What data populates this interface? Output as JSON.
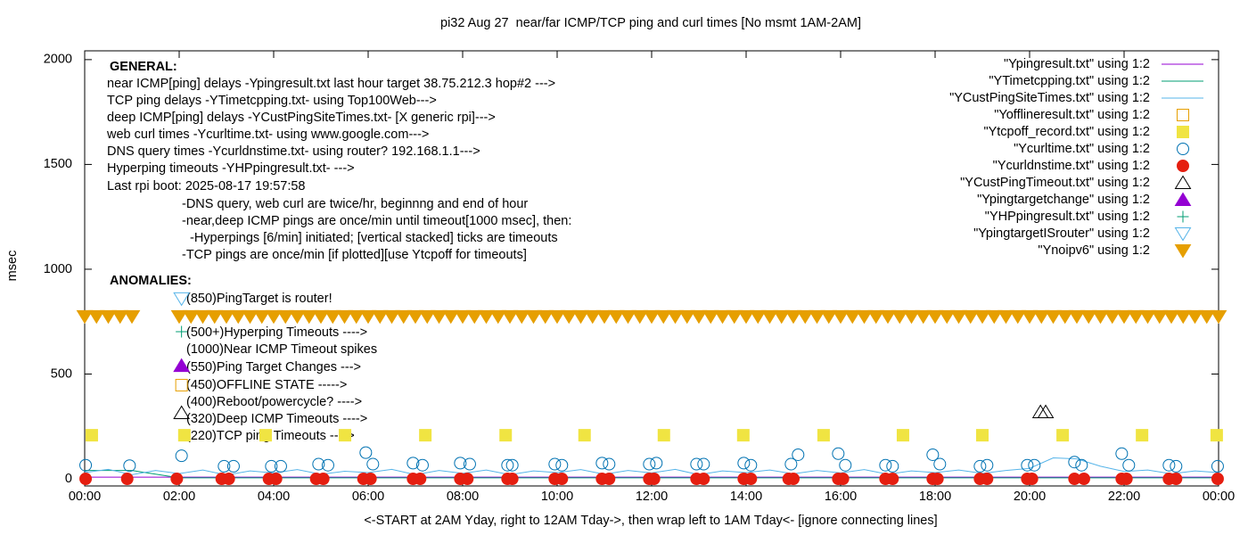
{
  "chart_data": {
    "type": "scatter",
    "title": "pi32 Aug 27  near/far ICMP/TCP ping and curl times [No msmt 1AM-2AM]",
    "xlabel": "<-START at 2AM Yday, right to 12AM Tday->, then wrap left to 1AM Tday<- [ignore connecting lines]",
    "ylabel": "msec",
    "xlim": [
      0,
      24
    ],
    "xticks": [
      {
        "value": 0,
        "label": "00:00"
      },
      {
        "value": 2,
        "label": "02:00"
      },
      {
        "value": 4,
        "label": "04:00"
      },
      {
        "value": 6,
        "label": "06:00"
      },
      {
        "value": 8,
        "label": "08:00"
      },
      {
        "value": 10,
        "label": "10:00"
      },
      {
        "value": 12,
        "label": "12:00"
      },
      {
        "value": 14,
        "label": "14:00"
      },
      {
        "value": 16,
        "label": "16:00"
      },
      {
        "value": 18,
        "label": "18:00"
      },
      {
        "value": 20,
        "label": "20:00"
      },
      {
        "value": 22,
        "label": "22:00"
      },
      {
        "value": 24,
        "label": "00:00"
      }
    ],
    "ylim": [
      -34,
      2042
    ],
    "yticks": [
      0,
      500,
      1000,
      1500,
      2000
    ],
    "general_notes": [
      "GENERAL:",
      "near ICMP[ping] delays -Ypingresult.txt last hour target 38.75.212.3 hop#2 --->",
      "TCP ping delays -YTimetcpping.txt- using Top100Web--->",
      "deep ICMP[ping] delays -YCustPingSiteTimes.txt- [X generic rpi]--->",
      "web curl times -Ycurltime.txt- using www.google.com--->",
      "DNS query times -Ycurldnstime.txt- using router? 192.168.1.1--->",
      "Hyperping timeouts -YHPpingresult.txt- --->",
      "Last rpi boot: 2025-08-17 19:57:58",
      "-DNS query, web curl are twice/hr, beginnng and end of hour",
      "-near,deep ICMP pings are once/min until timeout[1000 msec], then:",
      "-Hyperpings [6/min] initiated; [vertical stacked] ticks are timeouts",
      "-TCP pings are once/min [if plotted][use Ytcpoff for timeouts]"
    ],
    "anomaly_notes": [
      "ANOMALIES:",
      "(850)PingTarget is router!",
      "(500+)Hyperping Timeouts ---->",
      "(1000)Near ICMP Timeout spikes",
      "(550)Ping Target Changes --->",
      "(450)OFFLINE STATE ----->",
      "(400)Reboot/powercycle? ---->",
      "(320)Deep ICMP Timeouts ---->",
      "(220)TCP ping Timeouts ---->"
    ],
    "series": [
      {
        "name": "\"Ypingresult.txt\" using 1:2",
        "color": "#9400d3",
        "marker": "line",
        "x": [
          0,
          6,
          12,
          18,
          24
        ],
        "values": [
          8,
          8,
          8,
          8,
          8
        ]
      },
      {
        "name": "\"YTimetcpping.txt\" using 1:2",
        "color": "#009e73",
        "marker": "line",
        "x": [
          0,
          1,
          2,
          4,
          8,
          12,
          16,
          20,
          24
        ],
        "values": [
          40,
          40,
          5,
          5,
          5,
          5,
          5,
          5,
          5
        ]
      },
      {
        "name": "\"YCustPingSiteTimes.txt\" using 1:2",
        "color": "#56b4e9",
        "marker": "line",
        "x": [
          0,
          0.5,
          1,
          1.5,
          2,
          2.5,
          3,
          3.5,
          4,
          4.5,
          5,
          5.5,
          6,
          6.5,
          7,
          7.5,
          8,
          8.5,
          9,
          9.5,
          10,
          10.5,
          11,
          11.5,
          12,
          12.5,
          13,
          13.5,
          14,
          14.5,
          15,
          15.5,
          16,
          16.5,
          17,
          17.5,
          18,
          18.5,
          19,
          19.5,
          20,
          20.5,
          21,
          21.5,
          22,
          22.5,
          23,
          23.5,
          24
        ],
        "values": [
          30,
          45,
          20,
          40,
          25,
          42,
          18,
          38,
          28,
          44,
          22,
          36,
          30,
          45,
          20,
          40,
          26,
          42,
          20,
          38,
          30,
          44,
          22,
          40,
          28,
          45,
          20,
          38,
          30,
          42,
          24,
          40,
          28,
          44,
          22,
          38,
          30,
          42,
          26,
          40,
          50,
          100,
          95,
          60,
          35,
          42,
          24,
          38,
          30
        ]
      },
      {
        "name": "\"Yofflineresult.txt\" using 1:2",
        "color": "#e69f00",
        "marker": "square-open",
        "x": [
          2.05
        ],
        "values": [
          447
        ]
      },
      {
        "name": "\"Ytcpoff_record.txt\" using 1:2",
        "color": "#f0e442",
        "marker": "square-filled",
        "x": [
          0.15,
          2.11,
          3.83,
          5.51,
          7.21,
          8.91,
          10.58,
          12.26,
          13.94,
          15.64,
          17.32,
          19.0,
          20.7,
          22.38,
          23.96
        ],
        "values": [
          208,
          208,
          208,
          208,
          208,
          208,
          208,
          208,
          208,
          208,
          208,
          208,
          208,
          208,
          208
        ]
      },
      {
        "name": "\"Ycurltime.txt\" using 1:2",
        "color": "#0072b2",
        "marker": "circle-open",
        "x": [
          0.02,
          0.95,
          2.05,
          2.95,
          3.15,
          3.95,
          4.15,
          4.95,
          5.15,
          5.95,
          6.1,
          6.95,
          7.15,
          7.95,
          8.15,
          8.95,
          9.05,
          9.95,
          10.1,
          10.95,
          11.1,
          11.95,
          12.1,
          12.95,
          13.1,
          13.95,
          14.1,
          14.95,
          15.1,
          15.95,
          16.1,
          16.95,
          17.1,
          17.95,
          18.1,
          18.95,
          19.1,
          19.95,
          20.1,
          20.95,
          21.1,
          21.95,
          22.1,
          22.95,
          23.1,
          23.98
        ],
        "values": [
          65,
          63,
          110,
          60,
          60,
          60,
          60,
          70,
          65,
          125,
          70,
          75,
          65,
          75,
          70,
          65,
          65,
          70,
          65,
          75,
          70,
          70,
          75,
          70,
          70,
          75,
          65,
          70,
          115,
          120,
          65,
          65,
          60,
          115,
          70,
          60,
          65,
          65,
          65,
          80,
          65,
          120,
          65,
          65,
          60,
          60
        ]
      },
      {
        "name": "\"Ycurldnstime.txt\" using 1:2",
        "color": "#e51e10",
        "marker": "circle-filled",
        "x": [
          0.02,
          0.9,
          1.95,
          2.9,
          3.05,
          3.9,
          4.05,
          4.9,
          5.05,
          5.9,
          6.05,
          6.95,
          7.1,
          7.95,
          8.1,
          8.95,
          9.05,
          9.95,
          10.1,
          10.95,
          11.1,
          11.95,
          12.05,
          12.95,
          13.1,
          13.95,
          14.1,
          14.9,
          15.0,
          15.95,
          16.05,
          16.95,
          17.1,
          17.95,
          18.05,
          18.95,
          19.1,
          19.95,
          20.05,
          20.95,
          21.15,
          21.95,
          22.05,
          22.95,
          23.1,
          23.98
        ],
        "values": [
          0,
          0,
          0,
          0,
          0,
          0,
          0,
          0,
          0,
          0,
          0,
          0,
          0,
          0,
          0,
          0,
          0,
          0,
          0,
          0,
          0,
          0,
          0,
          0,
          0,
          0,
          0,
          0,
          0,
          0,
          0,
          0,
          0,
          0,
          0,
          0,
          0,
          0,
          0,
          0,
          0,
          0,
          0,
          0,
          0,
          0
        ]
      },
      {
        "name": "\"YCustPingTimeout.txt\" using 1:2",
        "color": "#000000",
        "marker": "triangle-open",
        "x": [
          2.05,
          20.23,
          20.34
        ],
        "values": [
          315,
          319,
          319
        ]
      },
      {
        "name": "\"Ypingtargetchange\" using 1:2",
        "color": "#9400d3",
        "marker": "triangle-filled",
        "x": [
          2.05
        ],
        "values": [
          540
        ]
      },
      {
        "name": "\"YHPpingresult.txt\" using 1:2",
        "color": "#009e73",
        "marker": "plus",
        "x": [
          2.05
        ],
        "values": [
          702
        ]
      },
      {
        "name": "\"YpingtargetISrouter\" using 1:2",
        "color": "#56b4e9",
        "marker": "triangle-down-open",
        "x": [
          2.05
        ],
        "values": [
          860
        ]
      },
      {
        "name": "\"Ynoipv6\" using 1:2",
        "color": "#e69f00",
        "marker": "triangle-down-filled",
        "x": [
          0,
          0.25,
          0.5,
          0.75,
          1,
          2,
          2.25,
          2.5,
          2.75,
          3,
          3.25,
          3.5,
          3.75,
          4,
          4.25,
          4.5,
          4.75,
          5,
          5.25,
          5.5,
          5.75,
          6,
          6.25,
          6.5,
          6.75,
          7,
          7.25,
          7.5,
          7.75,
          8,
          8.25,
          8.5,
          8.75,
          9,
          9.25,
          9.5,
          9.75,
          10,
          10.25,
          10.5,
          10.75,
          11,
          11.25,
          11.5,
          11.75,
          12,
          12.25,
          12.5,
          12.75,
          13,
          13.25,
          13.5,
          13.75,
          14,
          14.25,
          14.5,
          14.75,
          15,
          15.25,
          15.5,
          15.75,
          16,
          16.25,
          16.5,
          16.75,
          17,
          17.25,
          17.5,
          17.75,
          18,
          18.25,
          18.5,
          18.75,
          19,
          19.25,
          19.5,
          19.75,
          20,
          20.25,
          20.5,
          20.75,
          21,
          21.25,
          21.5,
          21.75,
          22,
          22.25,
          22.5,
          22.75,
          23,
          23.25,
          23.5,
          23.75,
          24
        ],
        "values": [
          775,
          775,
          775,
          775,
          775,
          775,
          775,
          775,
          775,
          775,
          775,
          775,
          775,
          775,
          775,
          775,
          775,
          775,
          775,
          775,
          775,
          775,
          775,
          775,
          775,
          775,
          775,
          775,
          775,
          775,
          775,
          775,
          775,
          775,
          775,
          775,
          775,
          775,
          775,
          775,
          775,
          775,
          775,
          775,
          775,
          775,
          775,
          775,
          775,
          775,
          775,
          775,
          775,
          775,
          775,
          775,
          775,
          775,
          775,
          775,
          775,
          775,
          775,
          775,
          775,
          775,
          775,
          775,
          775,
          775,
          775,
          775,
          775,
          775,
          775,
          775,
          775,
          775,
          775,
          775,
          775,
          775,
          775,
          775,
          775,
          775,
          775,
          775,
          775,
          775,
          775,
          775,
          775,
          775
        ]
      }
    ]
  }
}
